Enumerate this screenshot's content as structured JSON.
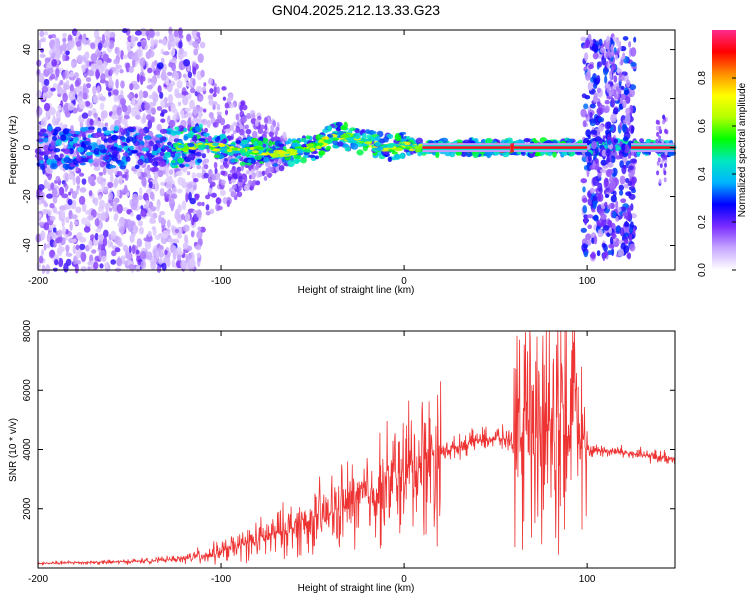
{
  "title": "GN04.2025.212.13.33.G23",
  "chart_data": [
    {
      "type": "heatmap",
      "xlabel": "Height of straight line (km)",
      "ylabel": "Frequency (Hz)",
      "xlim": [
        -200,
        148
      ],
      "ylim": [
        -50,
        48
      ],
      "xticks": [
        "-200",
        "-100",
        "0",
        "100"
      ],
      "yticks": [
        "-40",
        "-20",
        "0",
        "20",
        "40"
      ],
      "colorbar": {
        "label": "Normalized spectral amplitude",
        "range": [
          0.0,
          1.0
        ],
        "ticks": [
          "0.0",
          "0.2",
          "0.4",
          "0.6",
          "0.8"
        ],
        "colors": [
          "#ffffff",
          "#c8a8ff",
          "#7a2cff",
          "#0000ff",
          "#00b4ff",
          "#00e8c0",
          "#00ff00",
          "#b4ff00",
          "#ffff00",
          "#ff8c00",
          "#ff0000",
          "#ff2a8c"
        ]
      },
      "ridge": {
        "x": [
          -120,
          -110,
          -100,
          -90,
          -80,
          -70,
          -60,
          -50,
          -45,
          -40,
          -35,
          -30,
          -25,
          -20,
          -15,
          -10,
          -5,
          0,
          5,
          10,
          20,
          40,
          60,
          80,
          100,
          110,
          120,
          148
        ],
        "y": [
          0,
          1,
          0,
          -2,
          -1,
          -3,
          -2,
          0,
          2,
          4,
          5,
          4,
          3,
          2,
          1,
          0,
          0,
          1,
          0,
          0,
          0,
          0,
          0,
          0,
          0,
          0,
          0,
          0
        ]
      }
    },
    {
      "type": "line",
      "xlabel": "Height of straight line (km)",
      "ylabel": "SNR (10 * v/v)",
      "xlim": [
        -200,
        148
      ],
      "ylim": [
        0,
        8000
      ],
      "xticks": [
        "-200",
        "-100",
        "0",
        "100"
      ],
      "yticks": [
        "2000",
        "4000",
        "6000",
        "8000"
      ],
      "line_color": "#ee3333",
      "series": [
        {
          "x": [
            -200,
            -180,
            -160,
            -140,
            -120,
            -110,
            -100,
            -90,
            -80,
            -70,
            -60,
            -50,
            -40,
            -30,
            -20,
            -10,
            0,
            10,
            20,
            30,
            40,
            50,
            60,
            65,
            70,
            75,
            80,
            85,
            90,
            95,
            100,
            110,
            120,
            130,
            148
          ],
          "y": [
            150,
            180,
            200,
            240,
            320,
            420,
            550,
            750,
            950,
            1150,
            1400,
            1600,
            1850,
            2150,
            2450,
            2800,
            3200,
            3600,
            3900,
            4100,
            4300,
            4400,
            4300,
            4600,
            4400,
            4800,
            5000,
            5200,
            4800,
            4400,
            4000,
            3950,
            3900,
            3800,
            3700
          ]
        }
      ]
    }
  ]
}
